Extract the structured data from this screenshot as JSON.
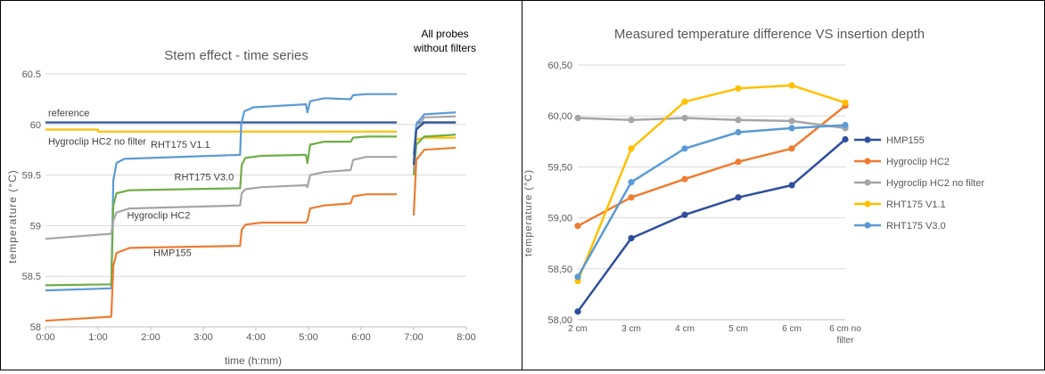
{
  "colors": {
    "reference": "#2f5597",
    "hmp155": "#2f4e9c",
    "hygroclip_hc2": "#ed7d31",
    "hygroclip_hc2_no_filter": "#a5a5a5",
    "rht175_v11": "#ffc000",
    "rht175_v30": "#5b9bd5",
    "green": "#70ad47",
    "grid": "#d9d9d9"
  },
  "chart_data": [
    {
      "type": "line",
      "title": "Stem effect - time series",
      "annotation": "All probes without filters",
      "annotation_lines": [
        "All probes",
        "without filters"
      ],
      "xlabel": "time (h:mm)",
      "ylabel": "temperature (°C)",
      "xlim": [
        0,
        8
      ],
      "ylim": [
        58,
        60.5
      ],
      "x_ticks": [
        0,
        1,
        2,
        3,
        4,
        5,
        6,
        7,
        8
      ],
      "x_tick_labels": [
        "0:00",
        "1:00",
        "2:00",
        "3:00",
        "4:00",
        "5:00",
        "6:00",
        "7:00",
        "8:00"
      ],
      "y_ticks": [
        58,
        58.5,
        59,
        59.5,
        60,
        60.5
      ],
      "y_tick_labels": [
        "58",
        "58.5",
        "59",
        "59.5",
        "60",
        "60.5"
      ],
      "grid": "horizontal",
      "series": [
        {
          "name": "reference",
          "color_key": "reference",
          "x": [
            0,
            6.68,
            7.0,
            7.05,
            7.8
          ],
          "y": [
            60.02,
            60.02,
            null,
            60.02,
            60.02
          ]
        },
        {
          "name": "Hygroclip HC2 no filter",
          "color_key": "rht175_v11",
          "x": [
            0,
            1.0,
            1.0,
            6.68,
            7.0,
            7.0,
            7.05,
            7.2,
            7.8
          ],
          "y": [
            59.95,
            59.95,
            59.93,
            59.93,
            null,
            59.7,
            59.85,
            59.87,
            59.87
          ]
        },
        {
          "name": "RHT175 V1.1",
          "color_key": "rht175_v30",
          "x": [
            0,
            1.25,
            1.29,
            1.35,
            1.5,
            3.7,
            3.72,
            3.78,
            3.95,
            4.95,
            4.98,
            5.03,
            5.3,
            5.8,
            5.85,
            6.1,
            6.68,
            7.0,
            7.0,
            7.05,
            7.2,
            7.8
          ],
          "y": [
            58.36,
            58.38,
            59.45,
            59.62,
            59.66,
            59.7,
            60.0,
            60.13,
            60.17,
            60.2,
            60.12,
            60.23,
            60.26,
            60.25,
            60.29,
            60.3,
            60.3,
            null,
            59.7,
            60.0,
            60.1,
            60.12
          ]
        },
        {
          "name": "RHT175 V3.0",
          "color_key": "green",
          "x": [
            0,
            1.25,
            1.29,
            1.35,
            1.6,
            3.7,
            3.73,
            3.8,
            4.1,
            4.95,
            4.98,
            5.03,
            5.3,
            5.8,
            5.85,
            6.1,
            6.68,
            7.0,
            7.0,
            7.05,
            7.2,
            7.8
          ],
          "y": [
            58.41,
            58.42,
            59.2,
            59.32,
            59.35,
            59.37,
            59.6,
            59.67,
            59.69,
            59.7,
            59.62,
            59.8,
            59.83,
            59.83,
            59.87,
            59.88,
            59.88,
            null,
            59.5,
            59.8,
            59.88,
            59.9
          ]
        },
        {
          "name": "Hygroclip HC2",
          "color_key": "hygroclip_hc2_no_filter",
          "x": [
            0,
            1.25,
            1.29,
            1.35,
            1.6,
            3.7,
            3.73,
            3.8,
            4.1,
            4.95,
            4.98,
            5.03,
            5.3,
            5.8,
            5.85,
            6.1,
            6.68,
            7.0,
            7.0,
            7.05,
            7.2,
            7.8
          ],
          "y": [
            58.87,
            58.92,
            59.05,
            59.13,
            59.17,
            59.2,
            59.32,
            59.36,
            59.38,
            59.4,
            59.38,
            59.5,
            59.53,
            59.55,
            59.65,
            59.68,
            59.68,
            null,
            59.55,
            59.95,
            60.07,
            60.08
          ]
        },
        {
          "name": "HMP155",
          "color_key": "hygroclip_hc2",
          "x": [
            0,
            1.25,
            1.29,
            1.35,
            1.6,
            3.7,
            3.73,
            3.8,
            4.1,
            4.95,
            4.98,
            5.03,
            5.3,
            5.8,
            5.85,
            6.1,
            6.68,
            7.0,
            7.0,
            7.05,
            7.2,
            7.8
          ],
          "y": [
            58.06,
            58.1,
            58.6,
            58.73,
            58.78,
            58.8,
            58.96,
            59.01,
            59.03,
            59.03,
            59.05,
            59.17,
            59.2,
            59.22,
            59.29,
            59.31,
            59.31,
            null,
            59.1,
            59.65,
            59.75,
            59.77
          ]
        },
        {
          "name": "",
          "color_key": "reference",
          "x": [
            7.0,
            7.0,
            7.05,
            7.2,
            7.8
          ],
          "y": [
            59.6,
            59.6,
            59.95,
            60.02,
            60.02
          ]
        }
      ],
      "labels": [
        {
          "text": "reference",
          "x": 0.05,
          "y": 60.08
        },
        {
          "text": "Hygroclip HC2 no filter",
          "x": 0.05,
          "y": 59.8
        },
        {
          "text": "RHT175 V1.1",
          "x": 2.0,
          "y": 59.77
        },
        {
          "text": "RHT175 V3.0",
          "x": 2.45,
          "y": 59.45
        },
        {
          "text": "Hygroclip HC2",
          "x": 1.55,
          "y": 59.07
        },
        {
          "text": "HMP155",
          "x": 2.05,
          "y": 58.7
        }
      ]
    },
    {
      "type": "line",
      "title": "Measured temperature difference VS insertion depth",
      "xlabel": "",
      "ylabel": "temperature (°C)",
      "categories": [
        "2 cm",
        "3 cm",
        "4 cm",
        "5 cm",
        "6 cm",
        "6 cm no filter"
      ],
      "category_lines": [
        [
          "2 cm"
        ],
        [
          "3 cm"
        ],
        [
          "4 cm"
        ],
        [
          "5 cm"
        ],
        [
          "6 cm"
        ],
        [
          "6 cm no",
          "filter"
        ]
      ],
      "ylim": [
        58.0,
        60.5
      ],
      "y_ticks": [
        58.0,
        58.5,
        59.0,
        59.5,
        60.0,
        60.5
      ],
      "y_tick_labels": [
        "58,00",
        "58,50",
        "59,00",
        "59,50",
        "60,00",
        "60,50"
      ],
      "grid": "horizontal",
      "legend": "right",
      "series": [
        {
          "name": "HMP155",
          "color_key": "hmp155",
          "values": [
            58.08,
            58.8,
            59.03,
            59.2,
            59.32,
            59.77
          ]
        },
        {
          "name": "Hygroclip HC2",
          "color_key": "hygroclip_hc2",
          "values": [
            58.92,
            59.2,
            59.38,
            59.55,
            59.68,
            60.1
          ]
        },
        {
          "name": "Hygroclip HC2 no filter",
          "color_key": "hygroclip_hc2_no_filter",
          "values": [
            59.98,
            59.96,
            59.98,
            59.96,
            59.95,
            59.88
          ]
        },
        {
          "name": "RHT175 V1.1",
          "color_key": "rht175_v11",
          "values": [
            58.38,
            59.68,
            60.14,
            60.27,
            60.3,
            60.13
          ]
        },
        {
          "name": "RHT175 V3.0",
          "color_key": "rht175_v30",
          "values": [
            58.42,
            59.35,
            59.68,
            59.84,
            59.88,
            59.91
          ]
        }
      ]
    }
  ]
}
